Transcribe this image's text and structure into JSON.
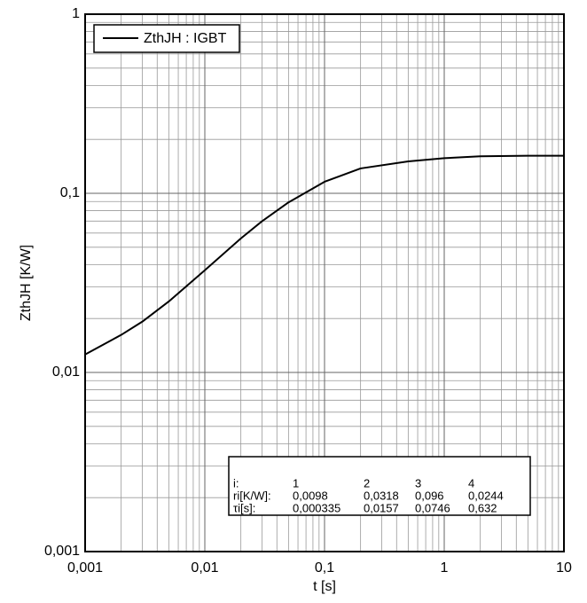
{
  "chart_data": {
    "type": "line",
    "xlabel": "t [s]",
    "ylabel": "ZthJH [K/W]",
    "log_x": true,
    "log_y": true,
    "grid": "major and minor",
    "legend": "upper left",
    "x": [
      0.001,
      0.002,
      0.003,
      0.005,
      0.01,
      0.02,
      0.03,
      0.05,
      0.1,
      0.2,
      0.5,
      1,
      2,
      5,
      10
    ],
    "series": [
      {
        "name": "ZthJH : IGBT",
        "color": "#000000",
        "values": [
          0.0126,
          0.0162,
          0.0192,
          0.0249,
          0.0372,
          0.056,
          0.0698,
          0.089,
          0.116,
          0.1377,
          0.1508,
          0.157,
          0.161,
          0.162,
          0.162
        ]
      }
    ],
    "xlim": [
      0.001,
      10
    ],
    "xticks": [
      {
        "value": 0.001,
        "label": "0,001"
      },
      {
        "value": 0.01,
        "label": "0,01"
      },
      {
        "value": 0.1,
        "label": "0,1"
      },
      1,
      10
    ],
    "ylim": [
      0.001,
      1
    ],
    "yticks": [
      {
        "value": 0.001,
        "label": "0,001"
      },
      {
        "value": 0.01,
        "label": "0,01"
      },
      {
        "value": 0.1,
        "label": "0,1"
      },
      1
    ],
    "table": {
      "rows": [
        [
          "i:",
          "1",
          "2",
          "3",
          "4"
        ],
        [
          "ri[K/W]:",
          "0,0098",
          "0,0318",
          "0,096",
          "0,0244"
        ],
        [
          "τi[s]:",
          "0,000335",
          "0,0157",
          "0,0746",
          "0,632"
        ]
      ]
    }
  }
}
